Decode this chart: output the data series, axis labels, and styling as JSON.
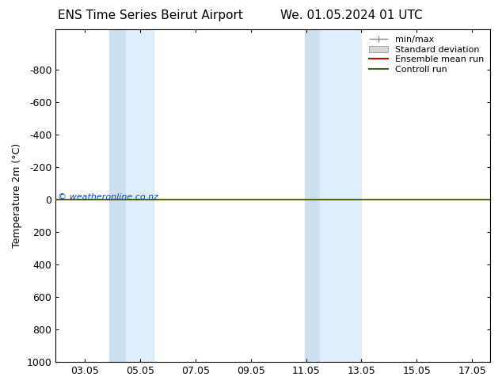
{
  "title_left": "ENS Time Series Beirut Airport",
  "title_right": "We. 01.05.2024 01 UTC",
  "ylabel": "Temperature 2m (°C)",
  "watermark": "© weatheronline.co.nz",
  "xlim": [
    2.0,
    17.7
  ],
  "ylim": [
    1000,
    -1050
  ],
  "yticks": [
    -800,
    -600,
    -400,
    -200,
    0,
    200,
    400,
    600,
    800,
    1000
  ],
  "xticks": [
    3.05,
    5.05,
    7.05,
    9.05,
    11.05,
    13.05,
    15.05,
    17.05
  ],
  "xticklabels": [
    "03.05",
    "05.05",
    "07.05",
    "09.05",
    "11.05",
    "13.05",
    "15.05",
    "17.05"
  ],
  "shade_bands": [
    [
      3.95,
      4.55
    ],
    [
      4.55,
      5.55
    ],
    [
      11.0,
      11.55
    ],
    [
      11.55,
      13.05
    ]
  ],
  "shade_color_dark": "#cce0f0",
  "shade_color_light": "#deeefa",
  "green_line_y": 0,
  "green_line_color": "#336600",
  "red_line_color": "#cc0000",
  "legend_items": [
    "min/max",
    "Standard deviation",
    "Ensemble mean run",
    "Controll run"
  ],
  "legend_line_color": "#888888",
  "legend_box_color": "#d8d8d8",
  "legend_red": "#cc0000",
  "legend_green": "#336600",
  "background_color": "#ffffff",
  "plot_bg_color": "#ffffff",
  "title_fontsize": 11,
  "axis_fontsize": 9,
  "legend_fontsize": 8,
  "watermark_color": "#0044bb",
  "watermark_fontsize": 8
}
